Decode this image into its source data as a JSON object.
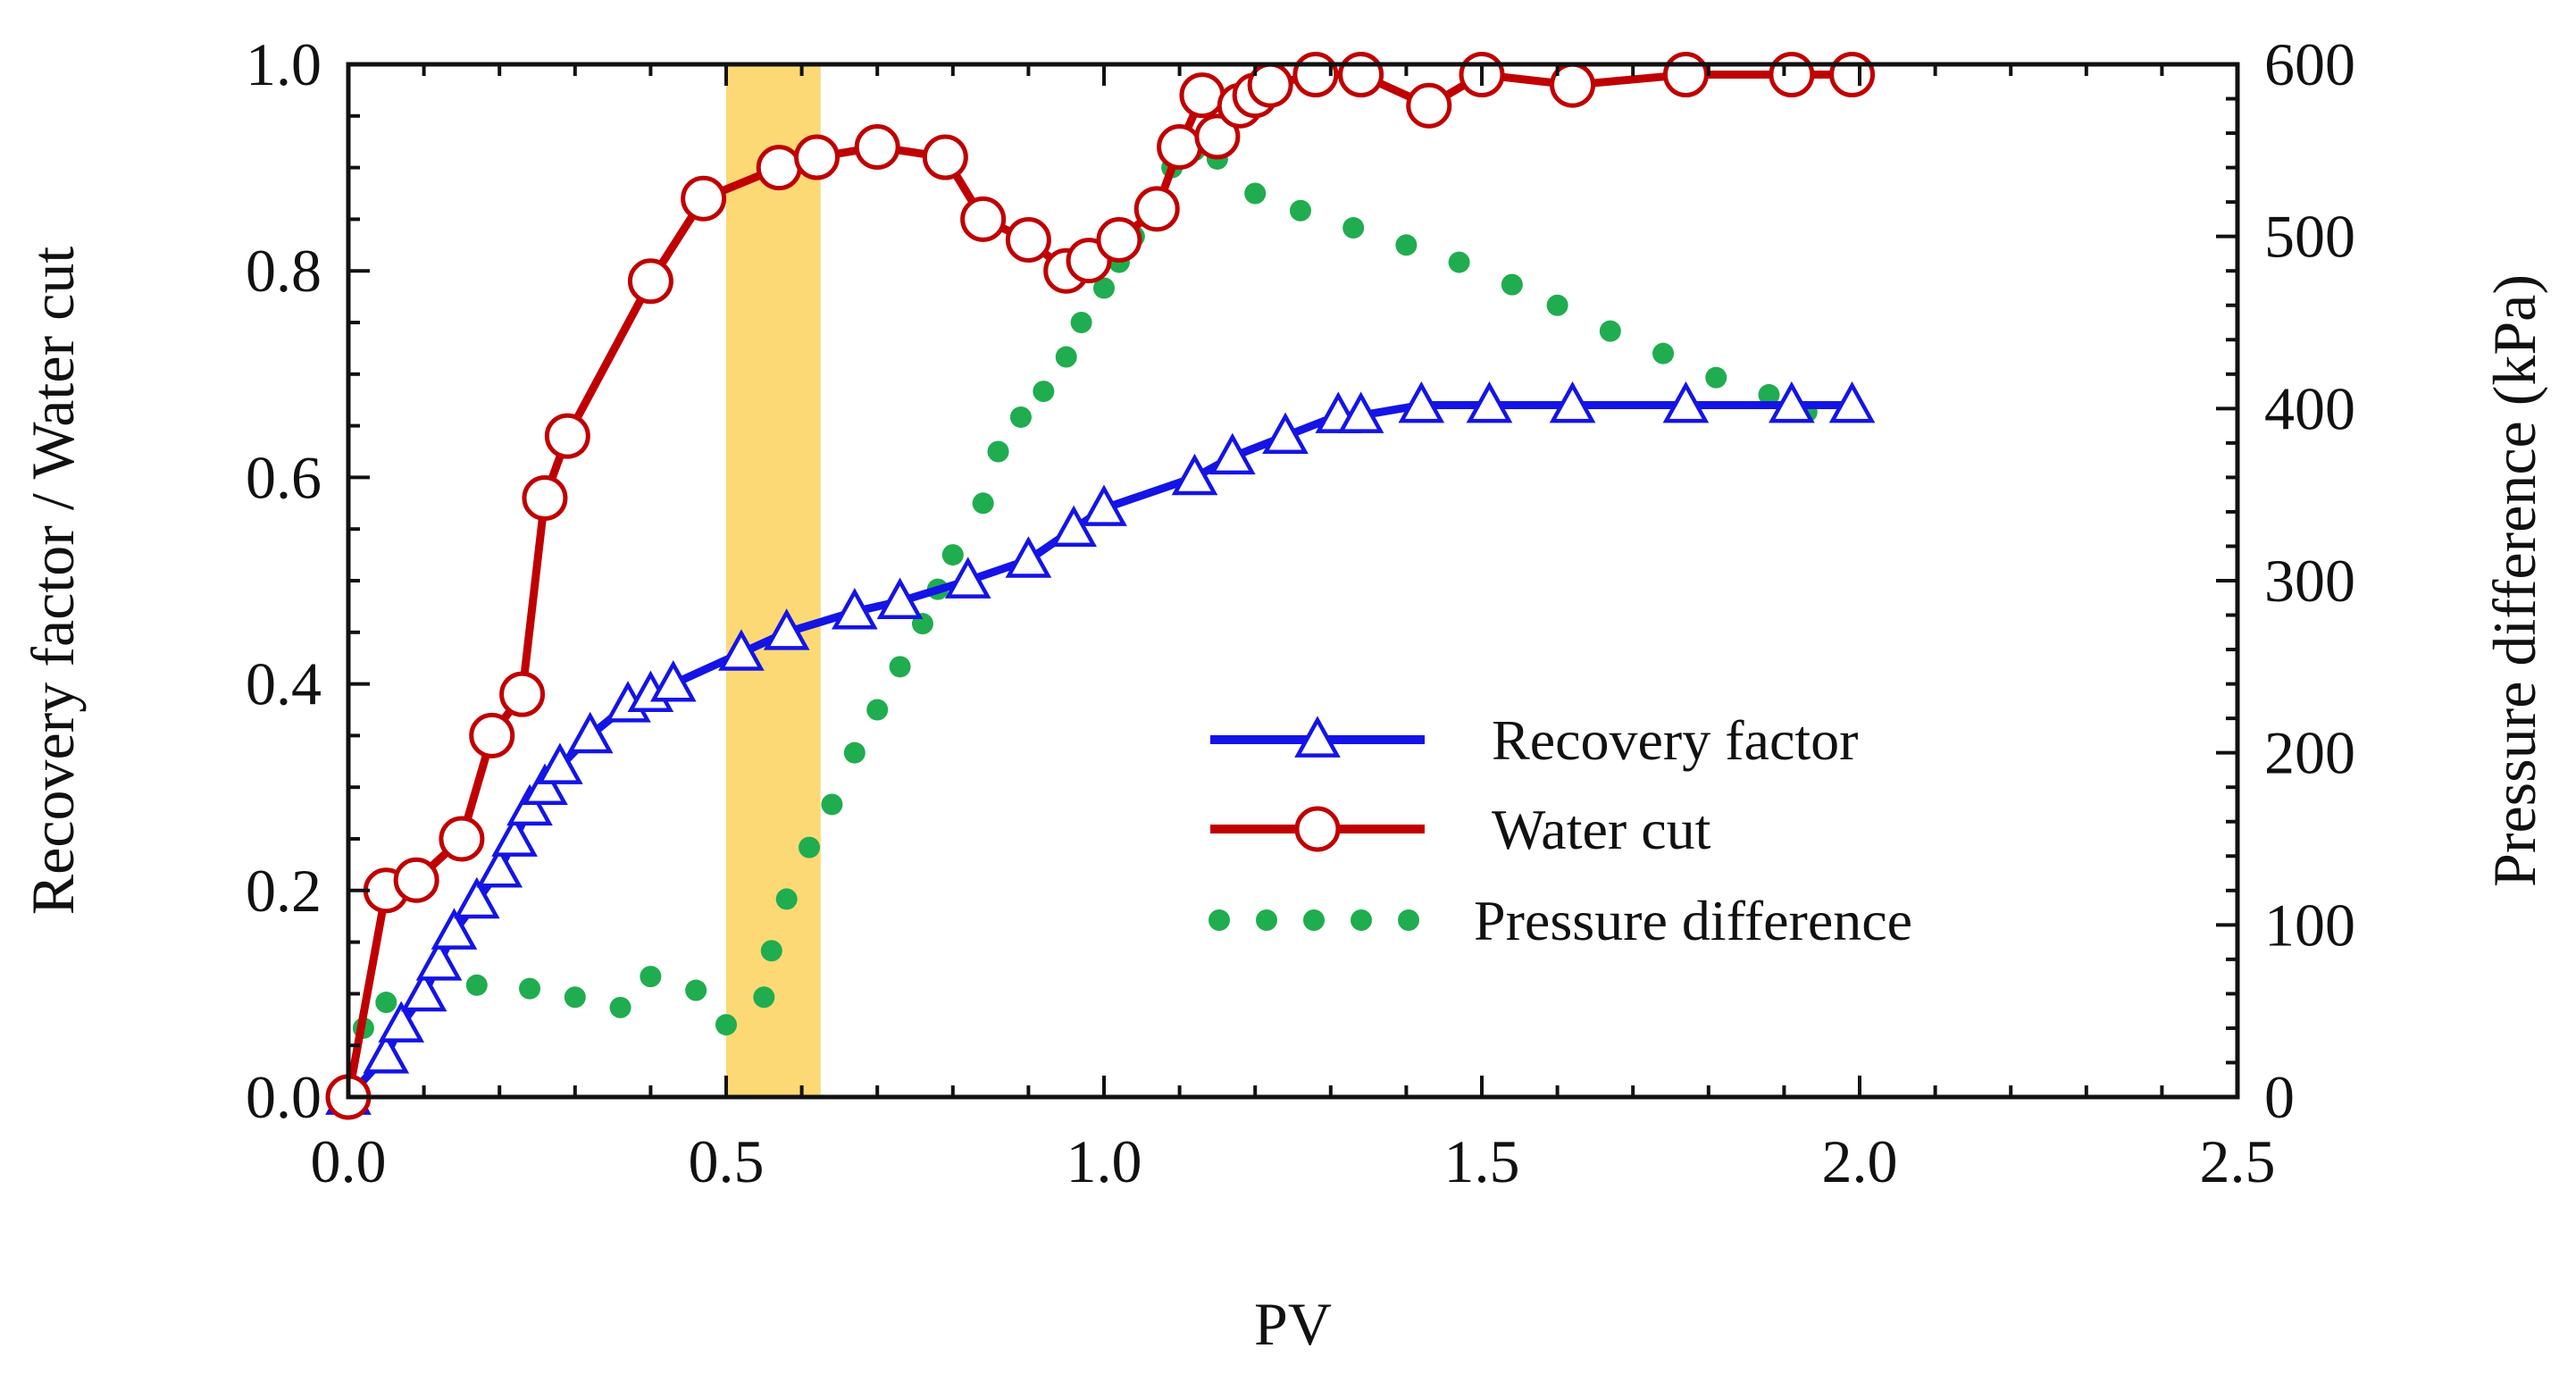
{
  "chart_data": {
    "type": "line",
    "title": "",
    "xlabel": "PV",
    "ylabel_left": "Recovery factor / Water cut",
    "ylabel_right": "Pressure difference (kPa)",
    "xlim": [
      0,
      2.5
    ],
    "ylim_left": [
      0,
      1.0
    ],
    "ylim_right": [
      0,
      600
    ],
    "x_ticks": [
      "0.0",
      "0.5",
      "1.0",
      "1.5",
      "2.0",
      "2.5"
    ],
    "y_left_ticks": [
      "0.0",
      "0.2",
      "0.4",
      "0.6",
      "0.8",
      "1.0"
    ],
    "y_right_ticks": [
      "0",
      "100",
      "200",
      "300",
      "400",
      "500",
      "600"
    ],
    "highlight_band": {
      "x_start": 0.5,
      "x_end": 0.625,
      "color": "#fcd975"
    },
    "grid": false,
    "legend_position": "center-right",
    "series": [
      {
        "name": "Recovery factor",
        "axis": "left",
        "color": "#1414e6",
        "marker": "triangle-open",
        "x": [
          0.0,
          0.05,
          0.07,
          0.1,
          0.12,
          0.14,
          0.17,
          0.2,
          0.22,
          0.24,
          0.26,
          0.28,
          0.32,
          0.37,
          0.4,
          0.43,
          0.52,
          0.58,
          0.67,
          0.73,
          0.82,
          0.9,
          0.96,
          1.0,
          1.12,
          1.17,
          1.24,
          1.31,
          1.34,
          1.42,
          1.51,
          1.62,
          1.77,
          1.91,
          1.99
        ],
        "y": [
          0.0,
          0.04,
          0.07,
          0.1,
          0.13,
          0.16,
          0.19,
          0.22,
          0.25,
          0.28,
          0.3,
          0.32,
          0.35,
          0.38,
          0.39,
          0.4,
          0.43,
          0.45,
          0.47,
          0.48,
          0.5,
          0.52,
          0.55,
          0.57,
          0.6,
          0.62,
          0.64,
          0.66,
          0.66,
          0.67,
          0.67,
          0.67,
          0.67,
          0.67,
          0.67
        ]
      },
      {
        "name": "Water cut",
        "axis": "left",
        "color": "#c00000",
        "marker": "circle-open",
        "x": [
          0.0,
          0.05,
          0.09,
          0.15,
          0.19,
          0.23,
          0.26,
          0.29,
          0.4,
          0.47,
          0.57,
          0.62,
          0.7,
          0.79,
          0.84,
          0.9,
          0.95,
          0.98,
          1.02,
          1.07,
          1.1,
          1.13,
          1.15,
          1.18,
          1.2,
          1.22,
          1.28,
          1.34,
          1.43,
          1.5,
          1.62,
          1.77,
          1.91,
          1.99
        ],
        "y": [
          0.0,
          0.2,
          0.21,
          0.25,
          0.35,
          0.39,
          0.58,
          0.64,
          0.79,
          0.87,
          0.9,
          0.91,
          0.92,
          0.91,
          0.85,
          0.83,
          0.8,
          0.81,
          0.83,
          0.86,
          0.92,
          0.97,
          0.93,
          0.96,
          0.97,
          0.98,
          0.99,
          0.99,
          0.96,
          0.99,
          0.98,
          0.99,
          0.99,
          0.99
        ]
      },
      {
        "name": "Pressure difference",
        "axis": "right",
        "color": "#1fad4f",
        "marker": "dot",
        "x": [
          0.0,
          0.02,
          0.05,
          0.1,
          0.17,
          0.24,
          0.3,
          0.36,
          0.4,
          0.46,
          0.5,
          0.55,
          0.56,
          0.58,
          0.61,
          0.64,
          0.67,
          0.7,
          0.73,
          0.76,
          0.78,
          0.8,
          0.84,
          0.86,
          0.89,
          0.92,
          0.95,
          0.97,
          1.0,
          1.02,
          1.04,
          1.06,
          1.09,
          1.12,
          1.15,
          1.2,
          1.26,
          1.33,
          1.4,
          1.47,
          1.54,
          1.6,
          1.67,
          1.74,
          1.81,
          1.88,
          1.93
        ],
        "y": [
          0,
          40,
          55,
          58,
          65,
          63,
          58,
          52,
          70,
          62,
          42,
          58,
          85,
          115,
          145,
          170,
          200,
          225,
          250,
          275,
          295,
          315,
          345,
          375,
          395,
          410,
          430,
          450,
          470,
          485,
          500,
          520,
          540,
          550,
          545,
          525,
          515,
          505,
          495,
          485,
          472,
          460,
          445,
          432,
          418,
          408,
          398
        ]
      }
    ]
  }
}
